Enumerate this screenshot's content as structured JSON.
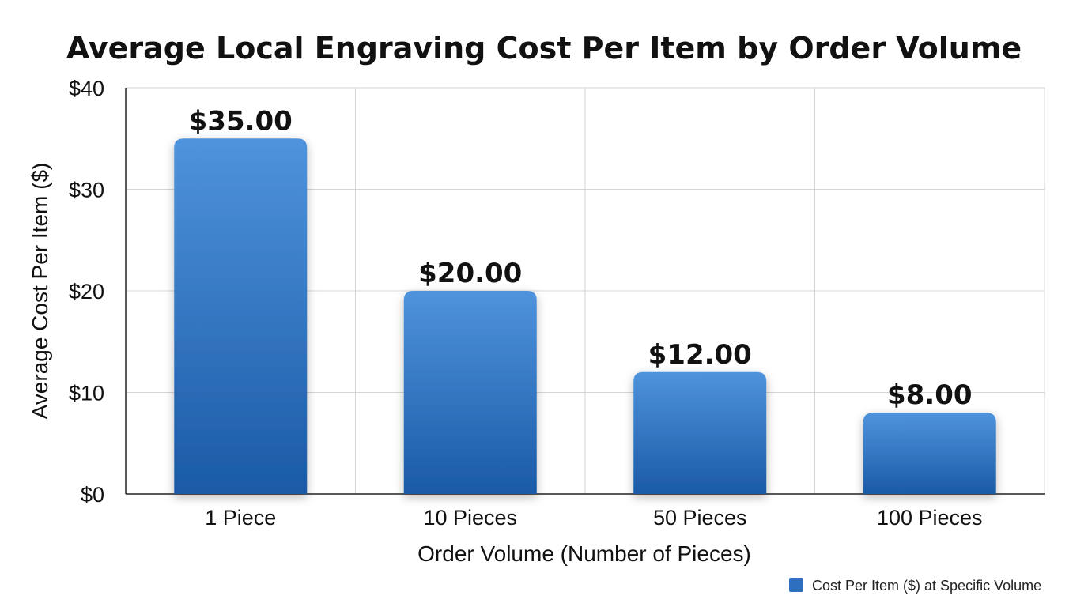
{
  "chart_data": {
    "type": "bar",
    "title": "Average Local Engraving Cost Per Item by Order Volume",
    "xlabel": "Order Volume (Number of Pieces)",
    "ylabel": "Average Cost Per Item ($)",
    "categories": [
      "1 Piece",
      "10 Pieces",
      "50 Pieces",
      "100 Pieces"
    ],
    "series": [
      {
        "name": "Cost Per Item ($) at Specific Volume",
        "values": [
          35,
          20,
          12,
          8
        ],
        "data_labels": [
          "$35.00",
          "$20.00",
          "$12.00",
          "$8.00"
        ]
      }
    ],
    "ylim": [
      0,
      40
    ],
    "yticks": [
      0,
      10,
      20,
      30,
      40
    ],
    "ytick_labels": [
      "$0",
      "$10",
      "$20",
      "$30",
      "$40"
    ],
    "grid": true,
    "legend_position": "bottom-right",
    "colors": {
      "bar_top": "#4f93dc",
      "bar_bottom": "#1b5aa6",
      "legend_swatch": "#2f6fbf"
    }
  }
}
